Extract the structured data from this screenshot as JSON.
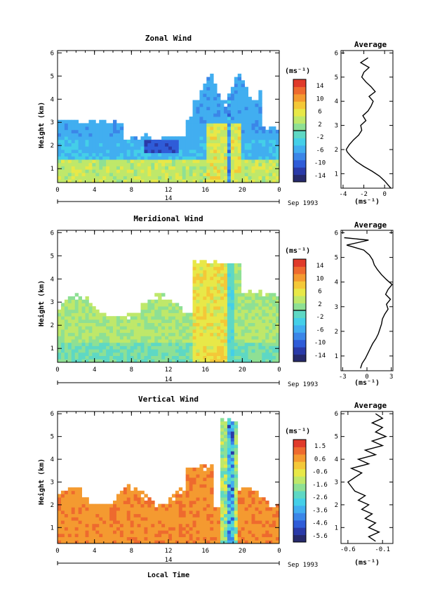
{
  "colors": {
    "scale": [
      "#262a6c",
      "#2a3aa8",
      "#2f5cd8",
      "#3b86e8",
      "#41aef0",
      "#44cfe8",
      "#5ed8c4",
      "#8ee094",
      "#bfe86a",
      "#e8e848",
      "#f4c838",
      "#f49a30",
      "#ee6a2e",
      "#e03a2a"
    ],
    "contour": "#000000",
    "frame": "#000000"
  },
  "chart_data": [
    {
      "type": "heatmap",
      "id": "zonal",
      "title": "Zonal Wind",
      "xlabel": "",
      "ylabel": "Height (km)",
      "x_ticks": [
        "0",
        "4",
        "8",
        "12",
        "16",
        "20",
        "0"
      ],
      "x_range": [
        0,
        24
      ],
      "y_ticks": [
        "1",
        "2",
        "3",
        "4",
        "5",
        "6"
      ],
      "y_range": [
        0.4,
        6.1
      ],
      "date_marker": "14",
      "date_suffix": "Sep 1993",
      "colorbar": {
        "unit": "(ms⁻¹)",
        "labels": [
          "14",
          "10",
          "6",
          "2",
          "-2",
          "-6",
          "-10",
          "-14"
        ],
        "range": [
          -16,
          16
        ],
        "marker": 0
      },
      "average": {
        "title": "Average",
        "xlabel": "(ms⁻¹)",
        "x_ticks": [
          "-4",
          "-2",
          "0"
        ],
        "x_range": [
          -4.2,
          0.8
        ],
        "y_range": [
          0.4,
          6.1
        ],
        "y_ticks": [
          "1",
          "2",
          "3",
          "4",
          "5",
          "6"
        ],
        "profile": {
          "height": [
            0.4,
            0.5,
            0.7,
            0.9,
            1.1,
            1.3,
            1.5,
            1.7,
            1.9,
            2.0,
            2.2,
            2.4,
            2.6,
            2.8,
            3.0,
            3.2,
            3.4,
            3.6,
            3.8,
            4.0,
            4.2,
            4.4,
            4.6,
            4.8,
            5.0,
            5.2,
            5.4,
            5.6,
            5.8
          ],
          "value": [
            0.6,
            0.4,
            0.0,
            -0.5,
            -1.2,
            -2.0,
            -2.7,
            -3.2,
            -3.6,
            -3.7,
            -3.4,
            -3.0,
            -2.5,
            -2.2,
            -2.3,
            -1.8,
            -2.1,
            -1.6,
            -1.3,
            -1.1,
            -1.5,
            -0.9,
            -1.3,
            -1.8,
            -2.2,
            -2.0,
            -1.5,
            -2.3,
            -1.6
          ]
        }
      }
    },
    {
      "type": "heatmap",
      "id": "meridional",
      "title": "Meridional Wind",
      "xlabel": "",
      "ylabel": "Height (km)",
      "x_ticks": [
        "0",
        "4",
        "8",
        "12",
        "16",
        "20",
        "0"
      ],
      "x_range": [
        0,
        24
      ],
      "y_ticks": [
        "1",
        "2",
        "3",
        "4",
        "5",
        "6"
      ],
      "y_range": [
        0.4,
        6.1
      ],
      "date_marker": "14",
      "date_suffix": "Sep 1993",
      "colorbar": {
        "unit": "(ms⁻¹)",
        "labels": [
          "14",
          "10",
          "6",
          "2",
          "-2",
          "-6",
          "-10",
          "-14"
        ],
        "range": [
          -16,
          16
        ],
        "marker": 0
      },
      "average": {
        "title": "Average",
        "xlabel": "(ms⁻¹)",
        "x_ticks": [
          "-3",
          "0",
          "3"
        ],
        "x_range": [
          -3.2,
          3.2
        ],
        "y_range": [
          0.4,
          6.1
        ],
        "y_ticks": [
          "1",
          "2",
          "3",
          "4",
          "5",
          "6"
        ],
        "profile": {
          "height": [
            0.5,
            0.7,
            0.9,
            1.1,
            1.3,
            1.5,
            1.7,
            1.9,
            2.1,
            2.3,
            2.5,
            2.7,
            2.9,
            3.1,
            3.3,
            3.5,
            3.7,
            3.9,
            4.1,
            4.3,
            4.5,
            4.7,
            4.9,
            5.1,
            5.3,
            5.5,
            5.7,
            5.8
          ],
          "value": [
            -0.8,
            -0.6,
            -0.2,
            0.1,
            0.4,
            0.7,
            1.1,
            1.4,
            1.6,
            1.8,
            1.9,
            2.2,
            2.6,
            2.4,
            2.9,
            2.3,
            2.6,
            3.1,
            2.4,
            1.8,
            1.3,
            0.9,
            0.7,
            0.3,
            -0.4,
            -2.5,
            0.2,
            -2.8
          ]
        }
      }
    },
    {
      "type": "heatmap",
      "id": "vertical",
      "title": "Vertical Wind",
      "xlabel": "Local Time",
      "ylabel": "Height (km)",
      "x_ticks": [
        "0",
        "4",
        "8",
        "12",
        "16",
        "20",
        "0"
      ],
      "x_range": [
        0,
        24
      ],
      "y_ticks": [
        "1",
        "2",
        "3",
        "4",
        "5",
        "6"
      ],
      "y_range": [
        0.3,
        6.1
      ],
      "date_marker": "14",
      "date_suffix": "Sep 1993",
      "colorbar": {
        "unit": "(ms⁻¹)",
        "labels": [
          "1.5",
          "0.6",
          "-0.6",
          "-1.6",
          "-2.6",
          "-3.6",
          "-4.6",
          "-5.6"
        ],
        "range": [
          -6.2,
          2.0
        ],
        "marker": null
      },
      "average": {
        "title": "Average",
        "xlabel": "(ms⁻¹)",
        "x_ticks": [
          "-0.6",
          "-0.1"
        ],
        "x_range": [
          -0.7,
          0.05
        ],
        "y_range": [
          0.3,
          6.1
        ],
        "y_ticks": [
          "1",
          "2",
          "3",
          "4",
          "5",
          "6"
        ],
        "profile": {
          "height": [
            0.4,
            0.6,
            0.8,
            1.0,
            1.2,
            1.4,
            1.6,
            1.8,
            2.0,
            2.2,
            2.4,
            2.6,
            2.8,
            3.0,
            3.2,
            3.4,
            3.6,
            3.8,
            4.0,
            4.2,
            4.4,
            4.6,
            4.8,
            5.0,
            5.2,
            5.4,
            5.6,
            5.8,
            6.0
          ],
          "value": [
            -0.2,
            -0.3,
            -0.15,
            -0.3,
            -0.2,
            -0.35,
            -0.25,
            -0.4,
            -0.3,
            -0.45,
            -0.35,
            -0.5,
            -0.55,
            -0.6,
            -0.5,
            -0.4,
            -0.55,
            -0.3,
            -0.45,
            -0.2,
            -0.35,
            -0.1,
            -0.25,
            -0.05,
            -0.2,
            -0.1,
            -0.25,
            -0.1,
            -0.2
          ]
        }
      }
    }
  ]
}
